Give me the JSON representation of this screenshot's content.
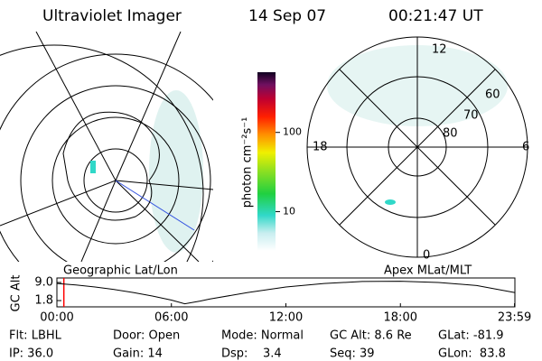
{
  "header": {
    "title": "Ultraviolet Imager",
    "date": "14 Sep 07",
    "time": "00:21:47 UT"
  },
  "geo_panel": {
    "label": "Geographic Lat/Lon"
  },
  "polar_panel": {
    "label": "Apex MLat/MLT",
    "mlt_labels": [
      "12",
      "18",
      "6",
      "0"
    ],
    "lat_labels": [
      "60",
      "70",
      "80"
    ]
  },
  "colorbar": {
    "label": "photon cm⁻²s⁻¹",
    "log": true,
    "lim": [
      3.2,
      575
    ],
    "ticks": [
      10,
      100
    ]
  },
  "chart_data": {
    "type": "line",
    "y_label": "GC Alt",
    "color": "#000000",
    "marker_color": "#ff0000",
    "current_time": 0.363,
    "x": [
      0,
      1,
      2,
      3,
      4,
      5,
      6,
      6.7,
      7.5,
      8,
      10,
      12,
      14,
      16,
      18,
      20,
      22,
      23.98
    ],
    "values": [
      8.6,
      8.0,
      7.2,
      6.2,
      5.0,
      3.6,
      2.0,
      0.5,
      1.6,
      2.4,
      5.0,
      7.2,
      8.6,
      9.4,
      9.5,
      9.0,
      7.8,
      5.0
    ],
    "xlim": [
      0,
      24
    ],
    "ylim": [
      -0.7,
      10.8
    ],
    "xticks": [
      {
        "value": 0,
        "label": "00:00"
      },
      {
        "value": 6,
        "label": "06:00"
      },
      {
        "value": 12,
        "label": "12:00"
      },
      {
        "value": 18,
        "label": "18:00"
      },
      {
        "value": 23.98,
        "label": "23:59"
      }
    ],
    "yticks": [
      {
        "value": 9,
        "label": "9.0"
      },
      1.8
    ]
  },
  "footer": {
    "rows": [
      [
        "Flt: LBHL",
        "Door: Open",
        "Mode: Normal",
        "GC Alt: 8.6 Re",
        "GLat: -81.9"
      ],
      [
        "IP: 36.0",
        "Gain: 14",
        "Dsp:    3.4",
        "Seq: 39",
        "GLon:  83.8"
      ]
    ]
  }
}
